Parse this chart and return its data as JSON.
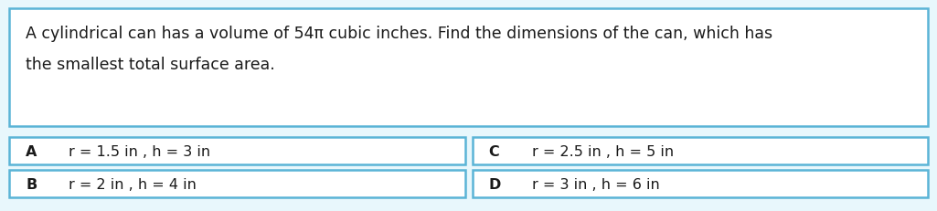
{
  "question_line1": "A cylindrical can has a volume of 54π cubic inches. Find the dimensions of the can, which has",
  "question_line2": "the smallest total surface area.",
  "options": [
    {
      "label": "A",
      "text": "r = 1.5 in , h = 3 in"
    },
    {
      "label": "B",
      "text": "r = 2 in , h = 4 in"
    },
    {
      "label": "C",
      "text": "r = 2.5 in , h = 5 in"
    },
    {
      "label": "D",
      "text": "r = 3 in , h = 6 in"
    }
  ],
  "border_color": "#5ab4d6",
  "background_color": "#ffffff",
  "outer_bg": "#e8f7fc",
  "text_color": "#1a1a1a",
  "label_color": "#1a1a1a",
  "font_size_question": 12.5,
  "font_size_options": 11.5,
  "fig_width": 10.25,
  "fig_height": 2.32
}
